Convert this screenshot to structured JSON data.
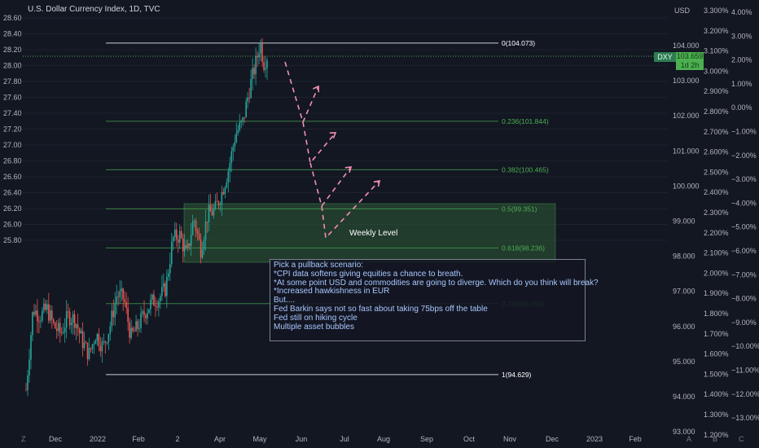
{
  "header": {
    "title": "U.S. Dollar Currency Index, 1D, TVC"
  },
  "toolbar": {
    "currency_label": "USD",
    "btn_z": "Z",
    "btn_a": "A",
    "btn_b": "B",
    "btn_c": "C"
  },
  "badge": {
    "symbol": "DXY",
    "price": "103.659",
    "countdown": "1d 2h"
  },
  "annotations": {
    "weekly_level": "Weekly Level",
    "note_lines": [
      "Pick a pullback scenario:",
      "*CPI data softens giving equities a chance to breath.",
      "*At some point USD and commodities are going to diverge. Which do you think will break?",
      "*Increased hawkishness in EUR",
      "But....",
      "Fed Barkin says not so fast about taking 75bps off the table",
      "Fed still on hiking cycle",
      "Multiple asset bubbles"
    ]
  },
  "colors": {
    "background": "#131722",
    "up": "#26a69a",
    "down": "#ef5350",
    "fib": "#4caf50",
    "zone": "#2e5a37",
    "arrows": "#f48fb1"
  },
  "chart_data": {
    "type": "candlestick",
    "title": "U.S. Dollar Currency Index, 1D, TVC",
    "x_ticks": [
      "Dec",
      "2022",
      "Feb",
      "2",
      "Apr",
      "May",
      "Jun",
      "Jul",
      "Aug",
      "Sep",
      "Oct",
      "Nov",
      "Dec",
      "2023",
      "Feb"
    ],
    "left_axis": {
      "range": [
        25.8,
        28.6
      ],
      "ticks": [
        "28.60",
        "28.40",
        "28.20",
        "28.00",
        "27.80",
        "27.60",
        "27.40",
        "27.20",
        "27.00",
        "26.80",
        "26.60",
        "26.40",
        "26.20",
        "26.00",
        "25.80"
      ]
    },
    "price_axis": {
      "unit": "USD",
      "range": [
        93.0,
        104.0
      ],
      "ticks": [
        "104.000",
        "103.000",
        "102.000",
        "101.000",
        "100.000",
        "99.000",
        "98.000",
        "97.000",
        "96.000",
        "95.000",
        "94.000",
        "93.000"
      ]
    },
    "percent_axis_1": {
      "ticks": [
        "3.300%",
        "3.200%",
        "3.100%",
        "3.000%",
        "2.900%",
        "2.800%",
        "2.700%",
        "2.600%",
        "2.500%",
        "2.400%",
        "2.300%",
        "2.200%",
        "2.100%",
        "2.000%",
        "1.900%",
        "1.800%",
        "1.700%",
        "1.600%",
        "1.500%",
        "1.400%",
        "1.300%",
        "1.200%"
      ]
    },
    "percent_axis_2": {
      "ticks": [
        "4.00%",
        "3.00%",
        "2.00%",
        "1.00%",
        "0.00%",
        "−1.00%",
        "−2.00%",
        "−3.00%",
        "−4.00%",
        "−5.00%",
        "−6.00%",
        "−7.00%",
        "−8.00%",
        "−9.00%",
        "−10.00%",
        "−11.00%",
        "−12.00%",
        "−13.00%"
      ]
    },
    "fib_levels": [
      {
        "label": "0(104.073)",
        "value": 104.073
      },
      {
        "label": "0.236(101.844)",
        "value": 101.844
      },
      {
        "label": "0.382(100.465)",
        "value": 100.465
      },
      {
        "label": "0.5(99.351)",
        "value": 99.351
      },
      {
        "label": "0.618(98.236)",
        "value": 98.236
      },
      {
        "label": "0.786(96.650)",
        "value": 96.65
      },
      {
        "label": "1(94.629)",
        "value": 94.629
      }
    ],
    "weekly_zone": [
      97.95,
      99.42
    ],
    "last_price": 103.659,
    "ohlc_path": [
      [
        -1,
        94.2
      ],
      [
        -0.9,
        96.5
      ],
      [
        -0.8,
        96.3
      ],
      [
        -0.7,
        96.5
      ],
      [
        -0.6,
        96.0
      ],
      [
        -0.5,
        95.8
      ],
      [
        -0.4,
        96.3
      ],
      [
        -0.3,
        96.2
      ],
      [
        -0.2,
        95.6
      ],
      [
        -0.1,
        95.2
      ],
      [
        0,
        95.8
      ],
      [
        0.1,
        95.4
      ],
      [
        0.2,
        96.0
      ],
      [
        0.3,
        96.9
      ],
      [
        0.4,
        96.8
      ],
      [
        0.5,
        95.7
      ],
      [
        0.6,
        96.0
      ],
      [
        0.7,
        96.4
      ],
      [
        0.8,
        96.7
      ],
      [
        0.9,
        96.8
      ],
      [
        1.0,
        97.1
      ],
      [
        1.1,
        98.5
      ],
      [
        1.2,
        98.6
      ],
      [
        1.3,
        98.0
      ],
      [
        1.4,
        99.1
      ],
      [
        1.5,
        98.2
      ],
      [
        1.6,
        99.2
      ],
      [
        1.7,
        99.3
      ],
      [
        1.8,
        99.8
      ],
      [
        1.9,
        100.5
      ],
      [
        2.0,
        101.5
      ],
      [
        2.1,
        101.8
      ],
      [
        2.2,
        102.8
      ],
      [
        2.3,
        103.6
      ],
      [
        2.35,
        104.1
      ],
      [
        2.4,
        103.5
      ],
      [
        2.45,
        103.7
      ]
    ]
  }
}
